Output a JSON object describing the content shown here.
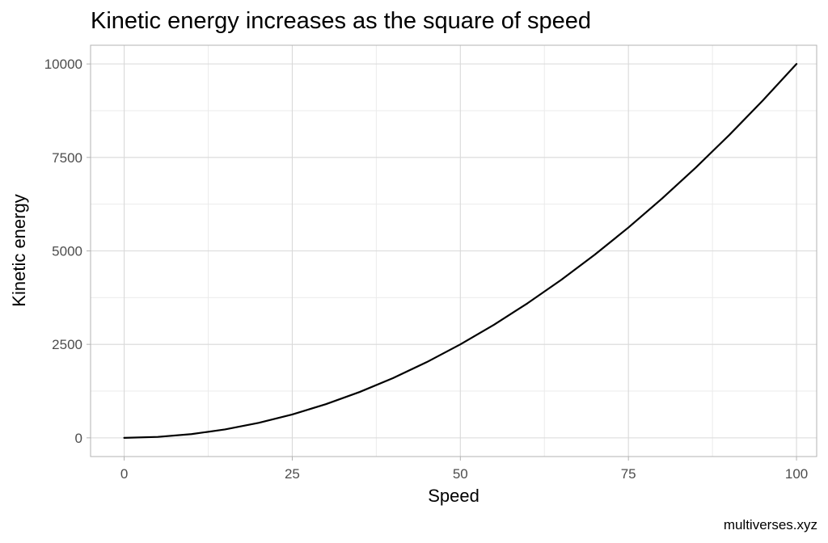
{
  "chart_data": {
    "type": "line",
    "title": "Kinetic energy increases as the square of speed",
    "xlabel": "Speed",
    "ylabel": "Kinetic energy",
    "caption": "multiverses.xyz",
    "xlim": [
      -5,
      103
    ],
    "ylim": [
      -500,
      10500
    ],
    "x_ticks": [
      0,
      25,
      50,
      75,
      100
    ],
    "y_ticks": [
      0,
      2500,
      5000,
      7500,
      10000
    ],
    "x_tick_labels": [
      "0",
      "25",
      "50",
      "75",
      "100"
    ],
    "y_tick_labels": [
      "0",
      "2500",
      "5000",
      "7500",
      "10000"
    ],
    "grid": true,
    "legend": "none",
    "series": [
      {
        "color": "#000000",
        "x": [
          0,
          5,
          10,
          15,
          20,
          25,
          30,
          35,
          40,
          45,
          50,
          55,
          60,
          65,
          70,
          75,
          80,
          85,
          90,
          95,
          100
        ],
        "y": [
          0,
          25,
          100,
          225,
          400,
          625,
          900,
          1225,
          1600,
          2025,
          2500,
          3025,
          3600,
          4225,
          4900,
          5625,
          6400,
          7225,
          8100,
          9025,
          10000
        ]
      }
    ]
  },
  "colors": {
    "panel_border": "#b3b3b3",
    "grid_major": "#d9d9d9",
    "grid_minor": "#ebebeb",
    "tick_label": "#4d4d4d",
    "line": "#000000"
  }
}
